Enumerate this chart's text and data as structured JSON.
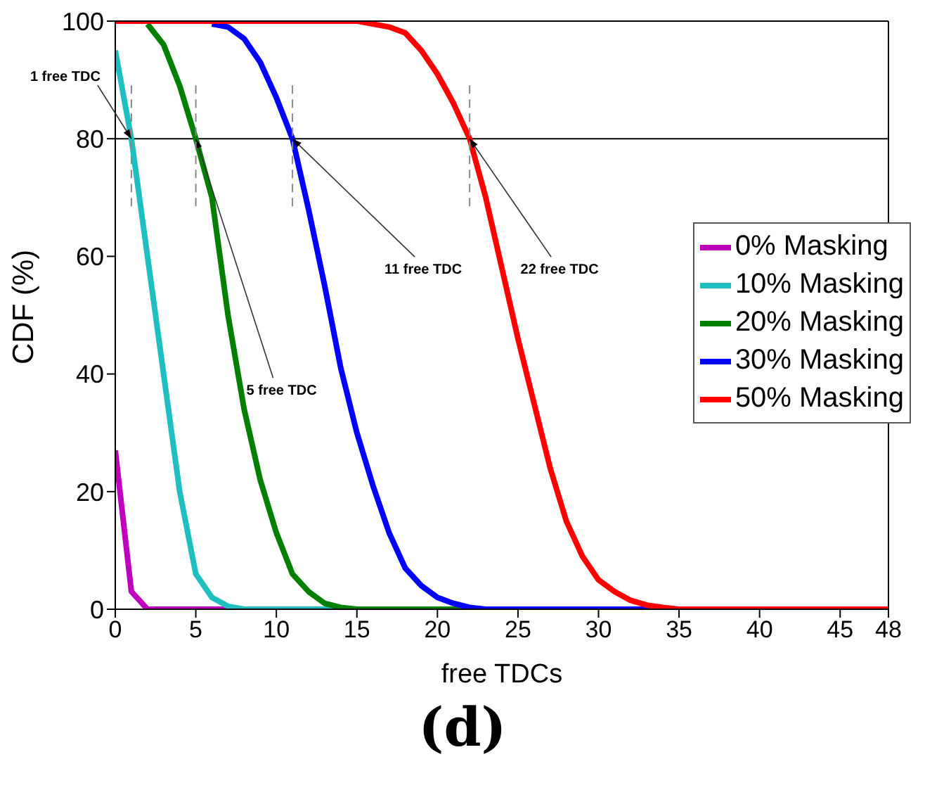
{
  "chart_data": {
    "type": "line",
    "xlabel": "free TDCs",
    "ylabel": "CDF (%)",
    "x": [
      0,
      1,
      2,
      3,
      4,
      5,
      6,
      7,
      8,
      9,
      10,
      11,
      12,
      13,
      14,
      15,
      16,
      17,
      18,
      19,
      20,
      21,
      22,
      23,
      24,
      25,
      26,
      27,
      28,
      29,
      30,
      31,
      32,
      33,
      34,
      35,
      36,
      37,
      38,
      39,
      40,
      41,
      42,
      43,
      44,
      45,
      46,
      47,
      48
    ],
    "series": [
      {
        "name": "0% Masking",
        "color": "#bf00bf",
        "values": [
          27,
          3,
          0,
          0,
          0,
          0,
          0,
          0,
          null,
          null,
          null,
          null,
          null,
          null,
          null,
          null,
          null,
          null,
          null,
          null,
          null,
          null,
          null,
          null,
          null,
          null,
          null,
          null,
          null,
          null,
          null,
          null,
          null,
          null,
          null,
          null,
          null,
          null,
          null,
          null,
          null,
          null,
          null,
          null,
          null,
          null,
          null,
          null,
          null
        ]
      },
      {
        "name": "10% Masking",
        "color": "#1fbfbf",
        "values": [
          95,
          80,
          60,
          40,
          20,
          6,
          2,
          0.5,
          0,
          0,
          0,
          0,
          0,
          0,
          0,
          null,
          null,
          null,
          null,
          null,
          null,
          null,
          null,
          null,
          null,
          null,
          null,
          null,
          null,
          null,
          null,
          null,
          null,
          null,
          null,
          null,
          null,
          null,
          null,
          null,
          null,
          null,
          null,
          null,
          null,
          null,
          null,
          null,
          null
        ]
      },
      {
        "name": "20% Masking",
        "color": "#007f00",
        "values": [
          null,
          null,
          99.5,
          96,
          89,
          80,
          70,
          50,
          34,
          22,
          13,
          6,
          3,
          1,
          0.3,
          0,
          0,
          0,
          0,
          0,
          0,
          0,
          0,
          null,
          null,
          null,
          null,
          null,
          null,
          null,
          null,
          null,
          null,
          null,
          null,
          null,
          null,
          null,
          null,
          null,
          null,
          null,
          null,
          null,
          null,
          null,
          null,
          null,
          null
        ]
      },
      {
        "name": "30% Masking",
        "color": "#0000ff",
        "values": [
          null,
          null,
          null,
          null,
          null,
          null,
          99.5,
          99,
          97,
          93,
          87,
          80,
          68,
          55,
          41,
          30,
          21,
          13,
          7,
          4,
          2,
          1,
          0.3,
          0,
          0,
          0,
          0,
          0,
          0,
          0,
          0,
          0,
          0,
          0,
          0,
          null,
          null,
          null,
          null,
          null,
          null,
          null,
          null,
          null,
          null,
          null,
          null,
          null,
          null
        ]
      },
      {
        "name": "50% Masking",
        "color": "#ff0000",
        "values": [
          100,
          100,
          100,
          100,
          100,
          100,
          100,
          100,
          100,
          100,
          100,
          100,
          100,
          100,
          100,
          100,
          99.5,
          99,
          98,
          95,
          91,
          86,
          80,
          70,
          58,
          46,
          35,
          24,
          15,
          9,
          5,
          3,
          1.5,
          0.7,
          0.3,
          0,
          0,
          0,
          0,
          0,
          0,
          0,
          0,
          0,
          0,
          0,
          0,
          0,
          0
        ]
      }
    ],
    "xlim": [
      0,
      48
    ],
    "xticks": [
      0,
      5,
      10,
      15,
      20,
      25,
      30,
      35,
      40,
      45,
      48
    ],
    "ylim": [
      0,
      100
    ],
    "yticks": [
      0,
      20,
      40,
      60,
      80,
      100
    ],
    "ref_lines": [
      {
        "axis": "y",
        "value": 80,
        "color": "#000000"
      }
    ],
    "annotations": [
      {
        "text": "1 free TDC",
        "x": 1,
        "y": 80
      },
      {
        "text": "5 free TDC",
        "x": 5,
        "y": 80
      },
      {
        "text": "11 free TDC",
        "x": 11,
        "y": 80
      },
      {
        "text": "22 free TDC",
        "x": 22,
        "y": 80
      },
      "(d)"
    ],
    "grid": false,
    "legend": "right",
    "marker": "none",
    "line_style": "solid"
  }
}
